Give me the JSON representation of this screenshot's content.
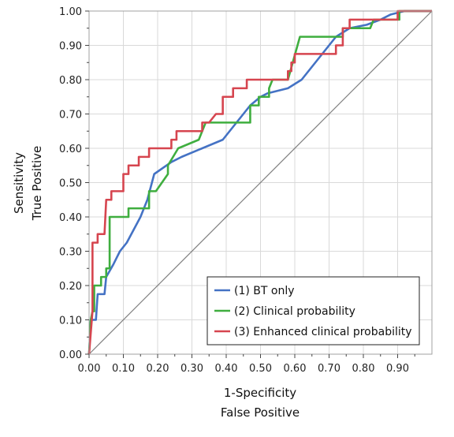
{
  "chart_data": {
    "type": "line",
    "xlabel_lines": [
      "1-Specificity",
      "False Positive"
    ],
    "ylabel_lines": [
      "Sensitivity",
      "True Positive"
    ],
    "xlim": [
      0,
      1
    ],
    "ylim": [
      0,
      1
    ],
    "x_ticks": [
      "0.00",
      "0.10",
      "0.20",
      "0.30",
      "0.40",
      "0.50",
      "0.60",
      "0.70",
      "0.80",
      "0.90"
    ],
    "y_ticks": [
      "0.00",
      "0.10",
      "0.20",
      "0.30",
      "0.40",
      "0.50",
      "0.60",
      "0.70",
      "0.80",
      "0.90",
      "1.00"
    ],
    "grid": true,
    "legend_position": "bottom-right",
    "reference_line": {
      "color": "#808080",
      "points": [
        [
          0,
          0
        ],
        [
          1,
          1
        ]
      ]
    },
    "series": [
      {
        "name": "(1) BT only",
        "color": "#4472c4",
        "points": [
          [
            0,
            0
          ],
          [
            0.005,
            0.1
          ],
          [
            0.02,
            0.1
          ],
          [
            0.025,
            0.175
          ],
          [
            0.045,
            0.175
          ],
          [
            0.05,
            0.225
          ],
          [
            0.07,
            0.26
          ],
          [
            0.08,
            0.28
          ],
          [
            0.09,
            0.3
          ],
          [
            0.11,
            0.325
          ],
          [
            0.15,
            0.4
          ],
          [
            0.17,
            0.45
          ],
          [
            0.19,
            0.525
          ],
          [
            0.24,
            0.56
          ],
          [
            0.27,
            0.575
          ],
          [
            0.39,
            0.625
          ],
          [
            0.43,
            0.675
          ],
          [
            0.47,
            0.725
          ],
          [
            0.5,
            0.75
          ],
          [
            0.52,
            0.76
          ],
          [
            0.58,
            0.775
          ],
          [
            0.62,
            0.8
          ],
          [
            0.66,
            0.85
          ],
          [
            0.72,
            0.925
          ],
          [
            0.76,
            0.95
          ],
          [
            0.81,
            0.96
          ],
          [
            0.85,
            0.975
          ],
          [
            0.88,
            0.99
          ],
          [
            0.92,
            1.0
          ],
          [
            1,
            1
          ]
        ]
      },
      {
        "name": "(2) Clinical probability",
        "color": "#3fae3f",
        "points": [
          [
            0,
            0
          ],
          [
            0.005,
            0.1
          ],
          [
            0.01,
            0.125
          ],
          [
            0.015,
            0.125
          ],
          [
            0.015,
            0.2
          ],
          [
            0.035,
            0.2
          ],
          [
            0.035,
            0.225
          ],
          [
            0.05,
            0.225
          ],
          [
            0.05,
            0.25
          ],
          [
            0.06,
            0.25
          ],
          [
            0.06,
            0.4
          ],
          [
            0.115,
            0.4
          ],
          [
            0.115,
            0.425
          ],
          [
            0.175,
            0.425
          ],
          [
            0.175,
            0.475
          ],
          [
            0.195,
            0.475
          ],
          [
            0.23,
            0.525
          ],
          [
            0.23,
            0.55
          ],
          [
            0.26,
            0.6
          ],
          [
            0.32,
            0.625
          ],
          [
            0.34,
            0.675
          ],
          [
            0.47,
            0.675
          ],
          [
            0.47,
            0.725
          ],
          [
            0.495,
            0.725
          ],
          [
            0.495,
            0.75
          ],
          [
            0.525,
            0.75
          ],
          [
            0.525,
            0.775
          ],
          [
            0.535,
            0.8
          ],
          [
            0.58,
            0.8
          ],
          [
            0.615,
            0.925
          ],
          [
            0.74,
            0.925
          ],
          [
            0.74,
            0.95
          ],
          [
            0.79,
            0.95
          ],
          [
            0.82,
            0.95
          ],
          [
            0.83,
            0.975
          ],
          [
            0.905,
            0.975
          ],
          [
            0.905,
            1.0
          ],
          [
            1,
            1
          ]
        ]
      },
      {
        "name": "(3) Enhanced clinical probability",
        "color": "#d6454f",
        "points": [
          [
            0,
            0
          ],
          [
            0.01,
            0.125
          ],
          [
            0.01,
            0.325
          ],
          [
            0.025,
            0.325
          ],
          [
            0.025,
            0.35
          ],
          [
            0.045,
            0.35
          ],
          [
            0.05,
            0.45
          ],
          [
            0.065,
            0.45
          ],
          [
            0.065,
            0.475
          ],
          [
            0.1,
            0.475
          ],
          [
            0.1,
            0.525
          ],
          [
            0.115,
            0.525
          ],
          [
            0.115,
            0.55
          ],
          [
            0.145,
            0.55
          ],
          [
            0.145,
            0.575
          ],
          [
            0.175,
            0.575
          ],
          [
            0.175,
            0.6
          ],
          [
            0.24,
            0.6
          ],
          [
            0.24,
            0.625
          ],
          [
            0.255,
            0.625
          ],
          [
            0.255,
            0.65
          ],
          [
            0.33,
            0.65
          ],
          [
            0.33,
            0.675
          ],
          [
            0.35,
            0.675
          ],
          [
            0.37,
            0.7
          ],
          [
            0.39,
            0.7
          ],
          [
            0.39,
            0.75
          ],
          [
            0.42,
            0.75
          ],
          [
            0.42,
            0.775
          ],
          [
            0.46,
            0.775
          ],
          [
            0.46,
            0.8
          ],
          [
            0.52,
            0.8
          ],
          [
            0.58,
            0.8
          ],
          [
            0.58,
            0.825
          ],
          [
            0.59,
            0.825
          ],
          [
            0.59,
            0.85
          ],
          [
            0.6,
            0.85
          ],
          [
            0.6,
            0.875
          ],
          [
            0.72,
            0.875
          ],
          [
            0.72,
            0.9
          ],
          [
            0.74,
            0.9
          ],
          [
            0.74,
            0.95
          ],
          [
            0.76,
            0.95
          ],
          [
            0.76,
            0.975
          ],
          [
            0.85,
            0.975
          ],
          [
            0.9,
            0.975
          ],
          [
            0.9,
            1.0
          ],
          [
            1,
            1
          ]
        ]
      }
    ]
  }
}
